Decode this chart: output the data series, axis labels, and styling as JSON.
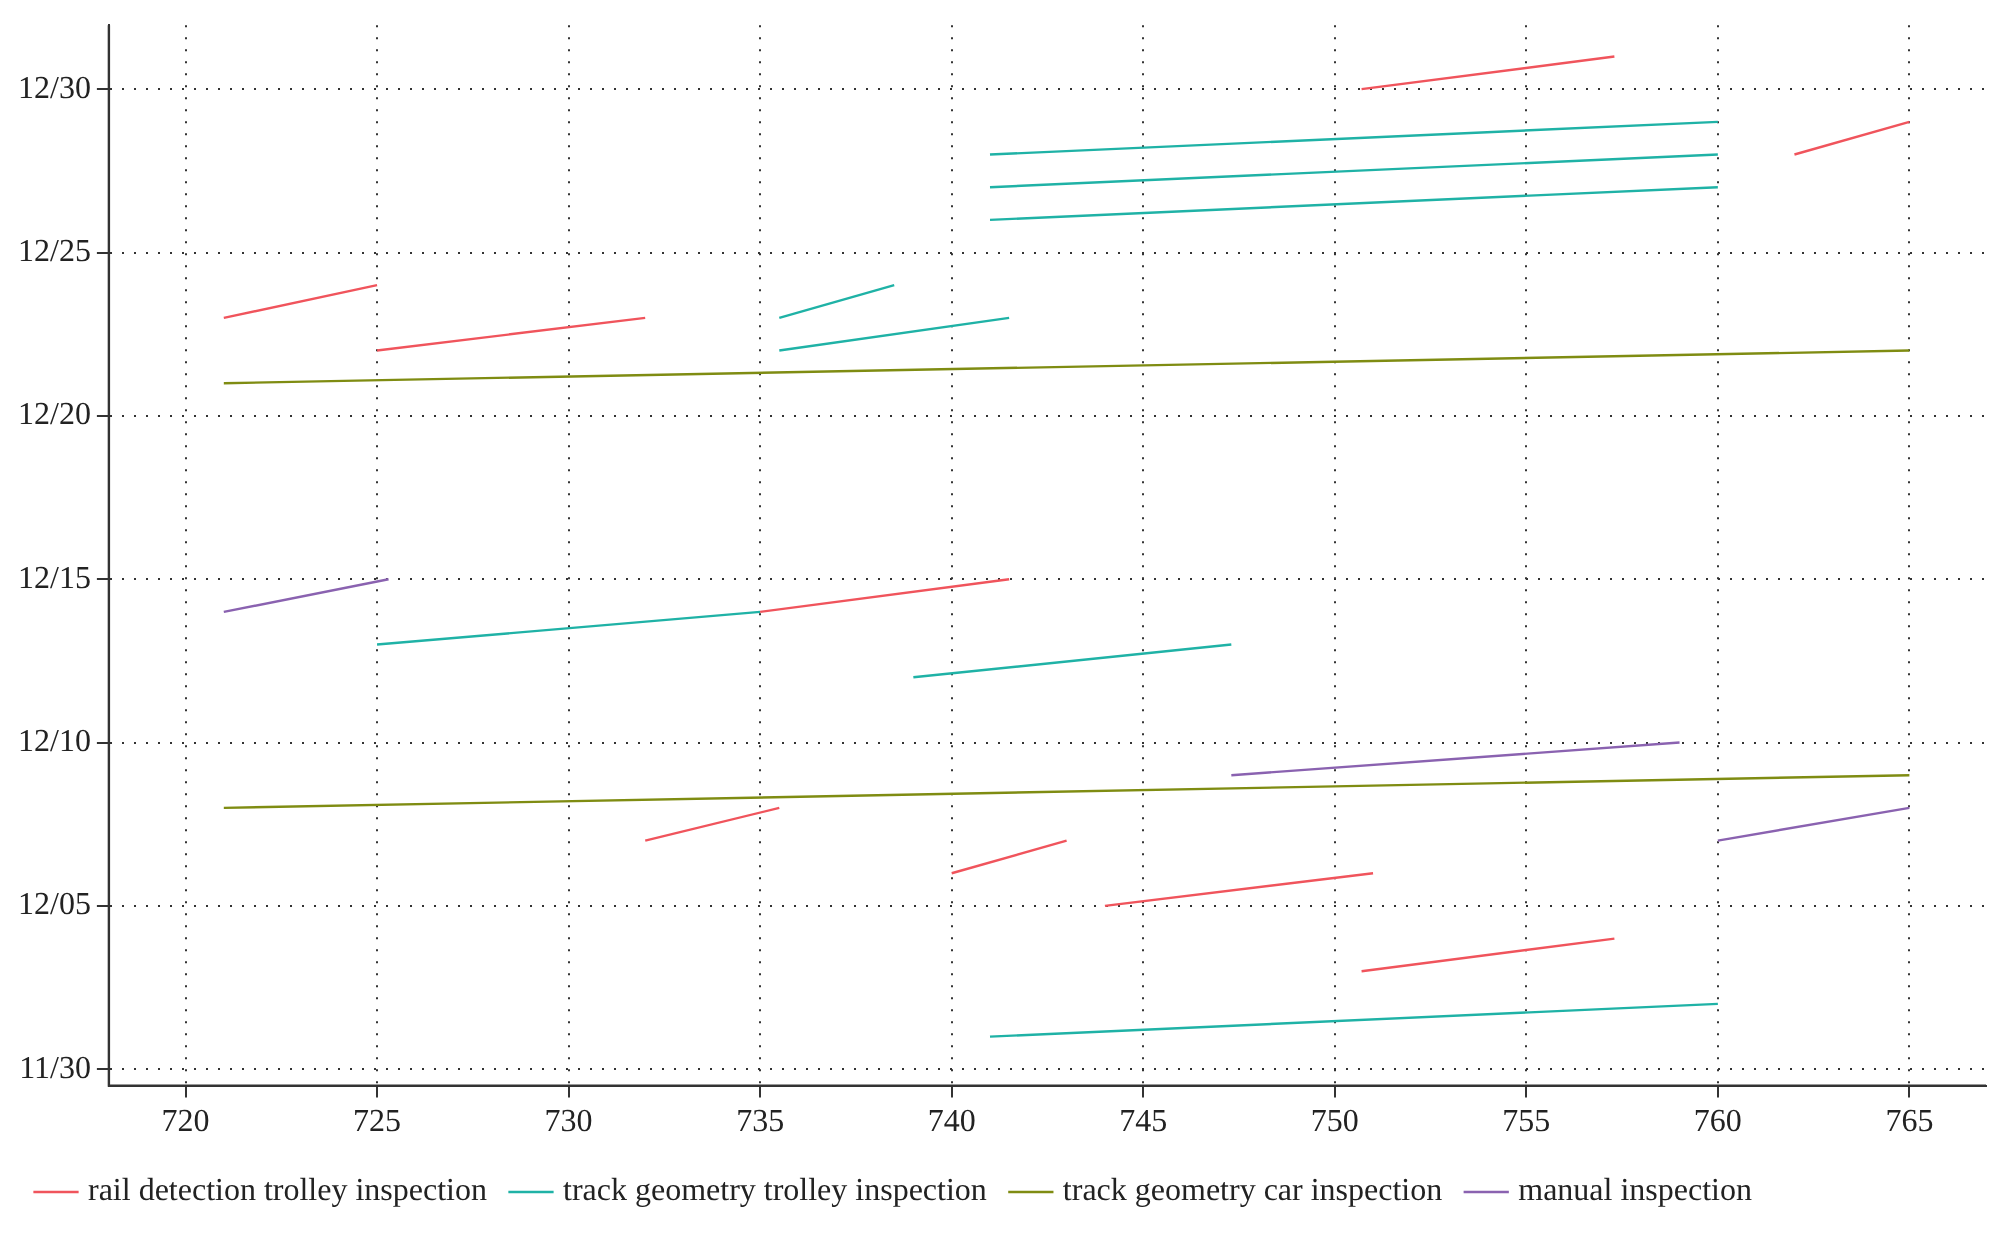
{
  "chart_data": {
    "type": "line",
    "orientation": "horizontal",
    "xlim": [
      718,
      767
    ],
    "xticks": [
      720,
      725,
      730,
      735,
      740,
      745,
      750,
      755,
      760,
      765
    ],
    "ylim": [
      "--11-29T12:00",
      "--12-31T23:00"
    ],
    "yticks": [
      {
        "value": "--11-30",
        "label": "11/30"
      },
      {
        "value": "--12-05",
        "label": "12/05"
      },
      {
        "value": "--12-10",
        "label": "12/10"
      },
      {
        "value": "--12-15",
        "label": "12/15"
      },
      {
        "value": "--12-20",
        "label": "12/20"
      },
      {
        "value": "--12-25",
        "label": "12/25"
      },
      {
        "value": "--12-30",
        "label": "12/30"
      }
    ],
    "grid": true,
    "legend": "bottom",
    "marker": "none",
    "line_style": "solid",
    "series": [
      {
        "name": "rail detection trolley inspection",
        "color": "#f0545c",
        "x": [
          "--12-23",
          "--12-24"
        ],
        "values": [
          721,
          725
        ]
      },
      {
        "color": "#f0545c",
        "x": [
          "--12-22",
          "--12-23"
        ],
        "values": [
          725,
          732
        ]
      },
      {
        "color": "#f0545c",
        "x": [
          "--12-14",
          "--12-15"
        ],
        "values": [
          735,
          741.5
        ]
      },
      {
        "color": "#f0545c",
        "x": [
          "--12-07",
          "--12-08"
        ],
        "values": [
          732,
          735.5
        ]
      },
      {
        "color": "#f0545c",
        "x": [
          "--12-06",
          "--12-07"
        ],
        "values": [
          740,
          743
        ]
      },
      {
        "color": "#f0545c",
        "x": [
          "--12-05",
          "--12-06"
        ],
        "values": [
          744,
          751
        ]
      },
      {
        "color": "#f0545c",
        "x": [
          "--12-30",
          "--12-31"
        ],
        "values": [
          750.7,
          757.3
        ]
      },
      {
        "color": "#f0545c",
        "x": [
          "--12-28",
          "--12-29"
        ],
        "values": [
          762,
          765
        ]
      },
      {
        "color": "#f0545c",
        "x": [
          "--12-03",
          "--12-04"
        ],
        "values": [
          750.7,
          757.3
        ]
      },
      {
        "name": "track geometry trolley inspection",
        "color": "#1fb2a6",
        "x": [
          "--12-28",
          "--12-29"
        ],
        "values": [
          741,
          760
        ]
      },
      {
        "color": "#1fb2a6",
        "x": [
          "--12-27",
          "--12-28"
        ],
        "values": [
          741,
          760
        ]
      },
      {
        "color": "#1fb2a6",
        "x": [
          "--12-26",
          "--12-27"
        ],
        "values": [
          741,
          760
        ]
      },
      {
        "color": "#1fb2a6",
        "x": [
          "--12-23",
          "--12-24"
        ],
        "values": [
          735.5,
          738.5
        ]
      },
      {
        "color": "#1fb2a6",
        "x": [
          "--12-22",
          "--12-23"
        ],
        "values": [
          735.5,
          741.5
        ]
      },
      {
        "color": "#1fb2a6",
        "x": [
          "--12-13",
          "--12-14"
        ],
        "values": [
          725,
          735
        ]
      },
      {
        "color": "#1fb2a6",
        "x": [
          "--12-12",
          "--12-13"
        ],
        "values": [
          739,
          747.3
        ]
      },
      {
        "color": "#1fb2a6",
        "x": [
          "--12-01",
          "--12-02"
        ],
        "values": [
          741,
          760
        ]
      },
      {
        "name": "track geometry car inspection",
        "color": "#7f8c12",
        "x": [
          "--12-21",
          "--12-22"
        ],
        "values": [
          721,
          765
        ]
      },
      {
        "color": "#7f8c12",
        "x": [
          "--12-08",
          "--12-09"
        ],
        "values": [
          721,
          765
        ]
      },
      {
        "name": "manual inspection",
        "color": "#8a62b0",
        "x": [
          "--12-14",
          "--12-15"
        ],
        "values": [
          721,
          725.3
        ]
      },
      {
        "color": "#8a62b0",
        "x": [
          "--12-09",
          "--12-10"
        ],
        "values": [
          747.3,
          759
        ]
      },
      {
        "color": "#8a62b0",
        "x": [
          "--12-07",
          "--12-08"
        ],
        "values": [
          760,
          765
        ]
      }
    ]
  }
}
